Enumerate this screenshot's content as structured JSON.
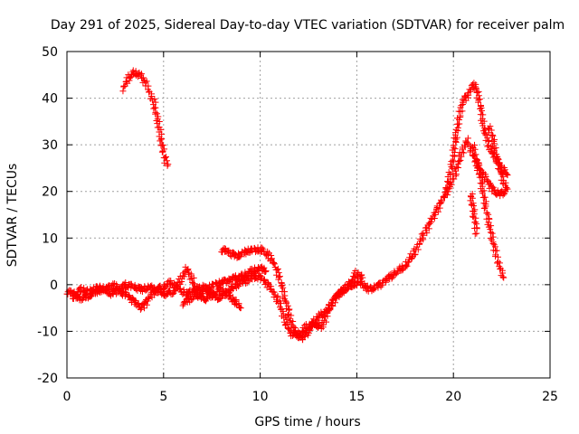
{
  "chart_data": {
    "type": "scatter",
    "title": "Day 291 of 2025, Sidereal Day-to-day VTEC variation (SDTVAR) for receiver palm",
    "xlabel": "GPS time / hours",
    "ylabel": "SDTVAR / TECUs",
    "xlim": [
      0,
      25
    ],
    "ylim": [
      -20,
      50
    ],
    "grid": true,
    "x_ticks": [
      0,
      5,
      10,
      15,
      20,
      25
    ],
    "y_ticks": [
      -20,
      -10,
      0,
      10,
      20,
      30,
      40,
      50
    ],
    "marker": "+",
    "color": "#ff0000",
    "series": [
      {
        "name": "segment-1",
        "points": [
          [
            2.9,
            42
          ],
          [
            3.2,
            44.5
          ],
          [
            3.5,
            45.5
          ],
          [
            3.8,
            45
          ],
          [
            4.1,
            43
          ],
          [
            4.5,
            39
          ],
          [
            4.8,
            33
          ],
          [
            5.0,
            28
          ],
          [
            5.2,
            25.5
          ]
        ]
      },
      {
        "name": "segment-2",
        "points": [
          [
            0.0,
            -1.5
          ],
          [
            0.4,
            -2
          ],
          [
            0.8,
            -1
          ],
          [
            1.2,
            -1.5
          ],
          [
            1.6,
            -0.5
          ],
          [
            2.0,
            -1
          ],
          [
            2.4,
            0
          ],
          [
            2.8,
            -1.5
          ],
          [
            3.2,
            -2.5
          ],
          [
            3.6,
            -4
          ],
          [
            3.9,
            -5
          ],
          [
            4.2,
            -3
          ],
          [
            4.6,
            -1
          ],
          [
            5.0,
            -0.5
          ],
          [
            5.4,
            0.5
          ],
          [
            5.8,
            -1
          ],
          [
            6.2,
            -2
          ],
          [
            6.6,
            -1
          ],
          [
            7.0,
            -0.5
          ],
          [
            7.4,
            -1.5
          ],
          [
            7.8,
            -3
          ],
          [
            8.2,
            -2
          ],
          [
            8.6,
            -0.5
          ],
          [
            9.0,
            0.5
          ],
          [
            9.4,
            1
          ],
          [
            9.8,
            2
          ],
          [
            10.2,
            1
          ],
          [
            10.6,
            -1
          ],
          [
            11.0,
            -4
          ],
          [
            11.3,
            -8
          ],
          [
            11.6,
            -10.5
          ],
          [
            12.0,
            -11
          ],
          [
            12.4,
            -9
          ],
          [
            12.8,
            -8.5
          ],
          [
            13.2,
            -9
          ],
          [
            13.6,
            -5
          ],
          [
            14.0,
            -2
          ],
          [
            14.4,
            -1
          ],
          [
            14.8,
            0
          ],
          [
            15.2,
            0.5
          ],
          [
            15.6,
            -1
          ],
          [
            16.0,
            -0.5
          ],
          [
            16.5,
            1
          ],
          [
            17.0,
            2.5
          ],
          [
            17.5,
            4
          ],
          [
            18.0,
            7
          ],
          [
            18.5,
            11
          ],
          [
            19.0,
            15
          ],
          [
            19.4,
            18
          ],
          [
            19.8,
            21
          ],
          [
            20.1,
            24
          ],
          [
            20.4,
            28
          ],
          [
            20.7,
            31
          ],
          [
            20.9,
            29
          ],
          [
            21.2,
            26
          ],
          [
            21.5,
            24
          ],
          [
            21.8,
            22
          ],
          [
            22.1,
            20
          ],
          [
            22.4,
            19.5
          ],
          [
            22.7,
            20
          ]
        ]
      },
      {
        "name": "segment-3",
        "points": [
          [
            0.3,
            -2.5
          ],
          [
            0.7,
            -3
          ],
          [
            1.1,
            -2.5
          ],
          [
            1.5,
            -1.5
          ],
          [
            1.9,
            -1
          ],
          [
            2.3,
            -2
          ],
          [
            2.7,
            -1
          ],
          [
            3.1,
            0
          ],
          [
            3.5,
            -0.5
          ],
          [
            3.9,
            -1
          ],
          [
            4.3,
            -0.5
          ],
          [
            4.7,
            -1.5
          ],
          [
            5.1,
            -2
          ],
          [
            5.5,
            -1.5
          ],
          [
            5.9,
            1
          ],
          [
            6.2,
            3.5
          ],
          [
            6.5,
            1
          ],
          [
            6.8,
            -2.5
          ],
          [
            7.2,
            -3
          ],
          [
            7.6,
            -2
          ],
          [
            8.0,
            -1
          ],
          [
            8.4,
            -2.5
          ],
          [
            8.8,
            -4
          ],
          [
            9.0,
            -5
          ]
        ]
      },
      {
        "name": "segment-4",
        "points": [
          [
            8.0,
            7.5
          ],
          [
            8.4,
            7
          ],
          [
            8.8,
            6
          ],
          [
            9.2,
            7
          ],
          [
            9.6,
            7.5
          ],
          [
            10.0,
            7.5
          ],
          [
            10.4,
            6.5
          ],
          [
            10.8,
            4
          ],
          [
            11.1,
            0
          ],
          [
            11.3,
            -3
          ],
          [
            11.6,
            -8
          ],
          [
            11.9,
            -10.5
          ],
          [
            12.2,
            -11.5
          ],
          [
            12.5,
            -10
          ],
          [
            12.8,
            -8
          ],
          [
            13.1,
            -6.5
          ],
          [
            13.4,
            -6
          ],
          [
            13.8,
            -3
          ],
          [
            14.2,
            -1.5
          ],
          [
            14.6,
            0
          ],
          [
            15.0,
            2.5
          ],
          [
            15.3,
            1.5
          ]
        ]
      },
      {
        "name": "segment-5",
        "points": [
          [
            6.0,
            -4
          ],
          [
            6.4,
            -3
          ],
          [
            6.8,
            -2
          ],
          [
            7.2,
            -1
          ],
          [
            7.6,
            0
          ],
          [
            8.0,
            0.5
          ],
          [
            8.4,
            1
          ],
          [
            8.8,
            1.5
          ],
          [
            9.2,
            2
          ],
          [
            9.6,
            3
          ],
          [
            10.0,
            3.5
          ],
          [
            10.3,
            3
          ]
        ]
      },
      {
        "name": "segment-6",
        "points": [
          [
            19.6,
            20
          ],
          [
            19.9,
            25
          ],
          [
            20.1,
            31
          ],
          [
            20.3,
            36
          ],
          [
            20.5,
            39.5
          ],
          [
            20.8,
            41
          ],
          [
            21.0,
            43
          ],
          [
            21.2,
            42
          ],
          [
            21.4,
            38
          ],
          [
            21.6,
            33
          ],
          [
            21.9,
            29
          ],
          [
            22.2,
            27
          ],
          [
            22.5,
            25
          ],
          [
            22.8,
            23.5
          ]
        ]
      },
      {
        "name": "segment-7",
        "points": [
          [
            21.0,
            30
          ],
          [
            21.4,
            23
          ],
          [
            21.7,
            16
          ],
          [
            22.0,
            10
          ],
          [
            22.3,
            5
          ],
          [
            22.6,
            1.5
          ]
        ]
      },
      {
        "name": "segment-8",
        "points": [
          [
            20.9,
            19.5
          ],
          [
            21.0,
            17
          ],
          [
            21.1,
            14
          ],
          [
            21.2,
            11
          ]
        ]
      },
      {
        "name": "segment-9",
        "points": [
          [
            21.8,
            34
          ],
          [
            22.0,
            32
          ],
          [
            22.2,
            28
          ],
          [
            22.4,
            25
          ],
          [
            22.6,
            22
          ],
          [
            22.8,
            20.5
          ]
        ]
      }
    ]
  }
}
